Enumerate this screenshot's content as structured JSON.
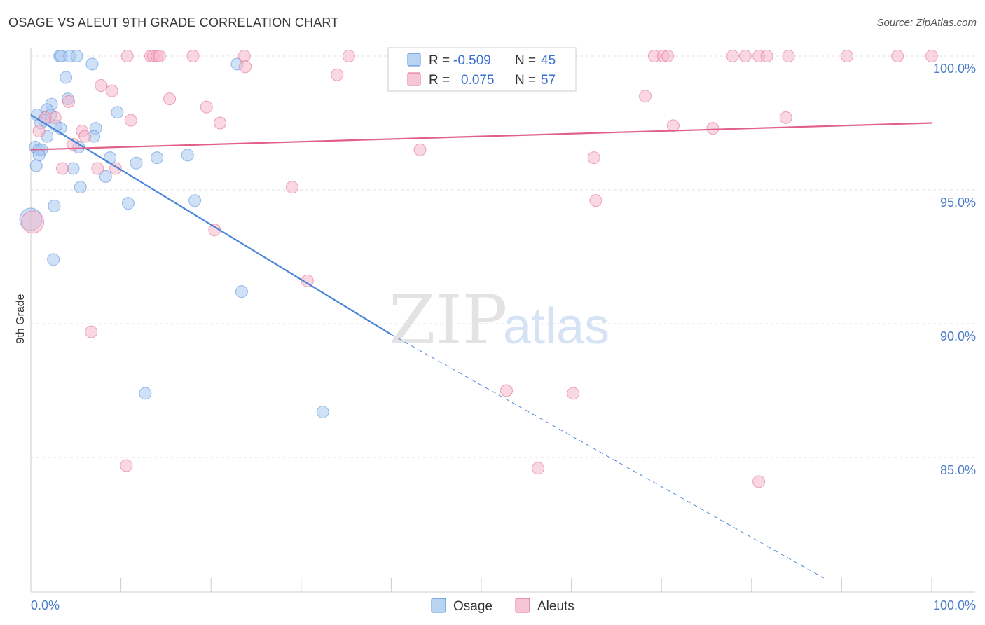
{
  "title": "OSAGE VS ALEUT 9TH GRADE CORRELATION CHART",
  "source": "Source: ZipAtlas.com",
  "watermark": {
    "zip": "ZIP",
    "atlas": "atlas"
  },
  "legend_box": {
    "rows": [
      {
        "r_label": "R =",
        "r_value": "-0.509",
        "n_label": "N =",
        "n_value": "45",
        "color": "#a8c8f0"
      },
      {
        "r_label": "R =",
        "r_value": "0.075",
        "n_label": "N =",
        "n_value": "57",
        "color": "#f5b8cb"
      }
    ]
  },
  "bottom_legend": [
    {
      "label": "Osage",
      "color": "#a8c8f0"
    },
    {
      "label": "Aleuts",
      "color": "#f5b8cb"
    }
  ],
  "chart_data": {
    "type": "scatter",
    "title": "OSAGE VS ALEUT 9TH GRADE CORRELATION CHART",
    "xlabel": "",
    "ylabel": "9th Grade",
    "xlim": [
      0,
      100
    ],
    "ylim": [
      80.5,
      100.8
    ],
    "x_tick_labels": [
      "0.0%",
      "100.0%"
    ],
    "y_ticks": [
      85,
      90,
      95,
      100
    ],
    "y_tick_labels": [
      "85.0%",
      "90.0%",
      "95.0%",
      "100.0%"
    ],
    "grid": true,
    "series": [
      {
        "name": "Osage",
        "color": "#4a86d8",
        "fill": "#a8c8f0",
        "trend": {
          "x0": 0,
          "y0": 97.8,
          "x1": 40,
          "y1": 89.6,
          "dash_to_x": 88,
          "dash_to_y": 80.5
        },
        "points": [
          [
            3.2,
            100
          ],
          [
            3.4,
            100
          ],
          [
            4.3,
            100
          ],
          [
            5.1,
            100
          ],
          [
            6.8,
            99.7
          ],
          [
            22.9,
            99.7
          ],
          [
            3.9,
            99.2
          ],
          [
            4.1,
            98.4
          ],
          [
            2.3,
            98.2
          ],
          [
            1.8,
            98.0
          ],
          [
            9.6,
            97.9
          ],
          [
            0.7,
            97.8
          ],
          [
            2.2,
            97.8
          ],
          [
            1.5,
            97.6
          ],
          [
            1.1,
            97.5
          ],
          [
            3.3,
            97.3
          ],
          [
            2.8,
            97.4
          ],
          [
            7.2,
            97.3
          ],
          [
            1.8,
            97.0
          ],
          [
            7.0,
            97.0
          ],
          [
            0.5,
            96.6
          ],
          [
            0.9,
            96.5
          ],
          [
            1.2,
            96.5
          ],
          [
            5.3,
            96.6
          ],
          [
            0.9,
            96.3
          ],
          [
            8.8,
            96.2
          ],
          [
            14.0,
            96.2
          ],
          [
            17.4,
            96.3
          ],
          [
            11.7,
            96.0
          ],
          [
            0.6,
            95.9
          ],
          [
            4.7,
            95.8
          ],
          [
            8.3,
            95.5
          ],
          [
            5.5,
            95.1
          ],
          [
            10.8,
            94.5
          ],
          [
            18.2,
            94.6
          ],
          [
            2.6,
            94.4
          ],
          [
            0.0,
            93.9
          ],
          [
            2.5,
            92.4
          ],
          [
            23.4,
            91.2
          ],
          [
            12.7,
            87.4
          ],
          [
            32.4,
            86.7
          ]
        ]
      },
      {
        "name": "Aleuts",
        "color": "#e0608a",
        "fill": "#f5b8cb",
        "trend": {
          "x0": 0,
          "y0": 96.5,
          "x1": 100,
          "y1": 97.5
        },
        "points": [
          [
            10.7,
            100
          ],
          [
            13.3,
            100
          ],
          [
            13.6,
            100
          ],
          [
            14.0,
            100
          ],
          [
            14.3,
            100
          ],
          [
            18.0,
            100
          ],
          [
            23.7,
            100
          ],
          [
            35.3,
            100
          ],
          [
            47.8,
            100
          ],
          [
            55.2,
            100
          ],
          [
            69.2,
            100
          ],
          [
            70.2,
            100
          ],
          [
            70.7,
            100
          ],
          [
            77.9,
            100
          ],
          [
            79.3,
            100
          ],
          [
            80.8,
            100
          ],
          [
            81.7,
            100
          ],
          [
            84.1,
            100
          ],
          [
            90.6,
            100
          ],
          [
            96.2,
            100
          ],
          [
            100,
            100
          ],
          [
            34.0,
            99.3
          ],
          [
            7.8,
            98.9
          ],
          [
            9.0,
            98.7
          ],
          [
            23.8,
            99.6
          ],
          [
            15.4,
            98.4
          ],
          [
            4.2,
            98.3
          ],
          [
            68.2,
            98.5
          ],
          [
            19.5,
            98.1
          ],
          [
            11.1,
            97.6
          ],
          [
            21.0,
            97.5
          ],
          [
            2.7,
            97.7
          ],
          [
            1.6,
            97.7
          ],
          [
            83.8,
            97.7
          ],
          [
            71.3,
            97.4
          ],
          [
            75.7,
            97.3
          ],
          [
            0.9,
            97.2
          ],
          [
            5.7,
            97.2
          ],
          [
            6.0,
            97.0
          ],
          [
            4.7,
            96.7
          ],
          [
            43.2,
            96.5
          ],
          [
            62.5,
            96.2
          ],
          [
            3.5,
            95.8
          ],
          [
            7.4,
            95.8
          ],
          [
            9.4,
            95.8
          ],
          [
            29.0,
            95.1
          ],
          [
            62.7,
            94.6
          ],
          [
            20.4,
            93.5
          ],
          [
            30.7,
            91.6
          ],
          [
            6.7,
            89.7
          ],
          [
            52.8,
            87.5
          ],
          [
            60.2,
            87.4
          ],
          [
            10.6,
            84.7
          ],
          [
            56.3,
            84.6
          ],
          [
            80.8,
            84.1
          ],
          [
            0.2,
            93.8
          ]
        ]
      }
    ]
  }
}
